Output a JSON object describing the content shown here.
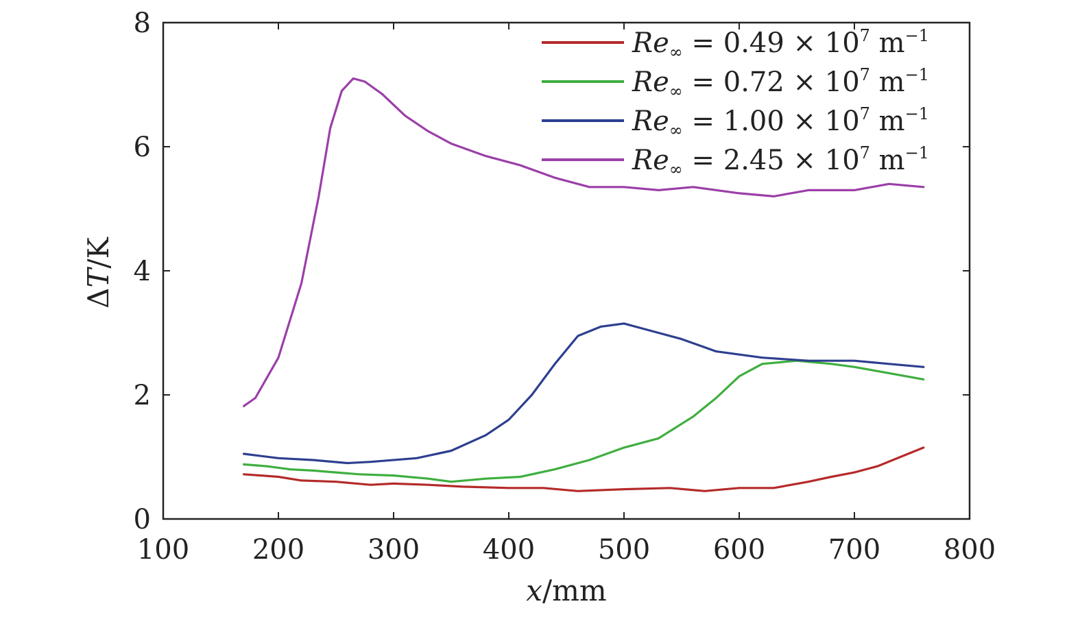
{
  "chart_data": {
    "type": "line",
    "xlabel": "x/mm",
    "ylabel": "ΔT/K",
    "xlim": [
      100,
      800
    ],
    "ylim": [
      0,
      8
    ],
    "xticks": [
      100,
      200,
      300,
      400,
      500,
      600,
      700,
      800
    ],
    "yticks": [
      0,
      2,
      4,
      6,
      8
    ],
    "grid": false,
    "legend_position": "top-right",
    "series": [
      {
        "name": "Re∞ = 0.49 × 10⁷ m⁻¹",
        "color": "#b52a2a",
        "x": [
          170,
          200,
          220,
          250,
          280,
          300,
          330,
          360,
          400,
          430,
          460,
          500,
          540,
          570,
          600,
          630,
          660,
          680,
          700,
          720,
          740,
          760
        ],
        "y": [
          0.72,
          0.68,
          0.62,
          0.6,
          0.55,
          0.57,
          0.55,
          0.52,
          0.5,
          0.5,
          0.45,
          0.48,
          0.5,
          0.45,
          0.5,
          0.5,
          0.6,
          0.68,
          0.75,
          0.85,
          1.0,
          1.15
        ]
      },
      {
        "name": "Re∞ = 0.72 × 10⁷ m⁻¹",
        "color": "#3fae3f",
        "x": [
          170,
          190,
          210,
          230,
          250,
          270,
          300,
          330,
          350,
          380,
          410,
          440,
          470,
          500,
          530,
          560,
          580,
          600,
          620,
          650,
          680,
          700,
          730,
          760
        ],
        "y": [
          0.88,
          0.85,
          0.8,
          0.78,
          0.75,
          0.72,
          0.7,
          0.65,
          0.6,
          0.65,
          0.68,
          0.8,
          0.95,
          1.15,
          1.3,
          1.65,
          1.95,
          2.3,
          2.5,
          2.55,
          2.5,
          2.45,
          2.35,
          2.25
        ]
      },
      {
        "name": "Re∞ = 1.00 × 10⁷ m⁻¹",
        "color": "#2d3f8f",
        "x": [
          170,
          200,
          230,
          260,
          280,
          320,
          350,
          380,
          400,
          420,
          440,
          460,
          480,
          500,
          520,
          550,
          580,
          620,
          660,
          700,
          730,
          760
        ],
        "y": [
          1.05,
          0.98,
          0.95,
          0.9,
          0.92,
          0.98,
          1.1,
          1.35,
          1.6,
          2.0,
          2.5,
          2.95,
          3.1,
          3.15,
          3.05,
          2.9,
          2.7,
          2.6,
          2.55,
          2.55,
          2.5,
          2.45
        ]
      },
      {
        "name": "Re∞ = 2.45 × 10⁷ m⁻¹",
        "color": "#9b3fa8",
        "x": [
          170,
          180,
          200,
          220,
          235,
          245,
          255,
          265,
          275,
          290,
          310,
          330,
          350,
          380,
          410,
          440,
          470,
          500,
          530,
          560,
          600,
          630,
          660,
          700,
          730,
          760
        ],
        "y": [
          1.82,
          1.95,
          2.6,
          3.8,
          5.2,
          6.3,
          6.9,
          7.1,
          7.05,
          6.85,
          6.5,
          6.25,
          6.05,
          5.85,
          5.7,
          5.5,
          5.35,
          5.35,
          5.3,
          5.35,
          5.25,
          5.2,
          5.3,
          5.3,
          5.4,
          5.35
        ]
      }
    ]
  },
  "legend": {
    "entries": [
      {
        "re": "Re",
        "sub": "∞",
        "eq": " = 0.49 × 10",
        "exp": "7",
        "unit": " m",
        "unit_exp": "−1"
      },
      {
        "re": "Re",
        "sub": "∞",
        "eq": " = 0.72 × 10",
        "exp": "7",
        "unit": " m",
        "unit_exp": "−1"
      },
      {
        "re": "Re",
        "sub": "∞",
        "eq": " = 1.00 × 10",
        "exp": "7",
        "unit": " m",
        "unit_exp": "−1"
      },
      {
        "re": "Re",
        "sub": "∞",
        "eq": " = 2.45 × 10",
        "exp": "7",
        "unit": " m",
        "unit_exp": "−1"
      }
    ]
  },
  "axis_labels": {
    "x_var": "x",
    "x_unit": "/mm",
    "y_delta": "Δ",
    "y_var": "T",
    "y_unit": "/K"
  }
}
